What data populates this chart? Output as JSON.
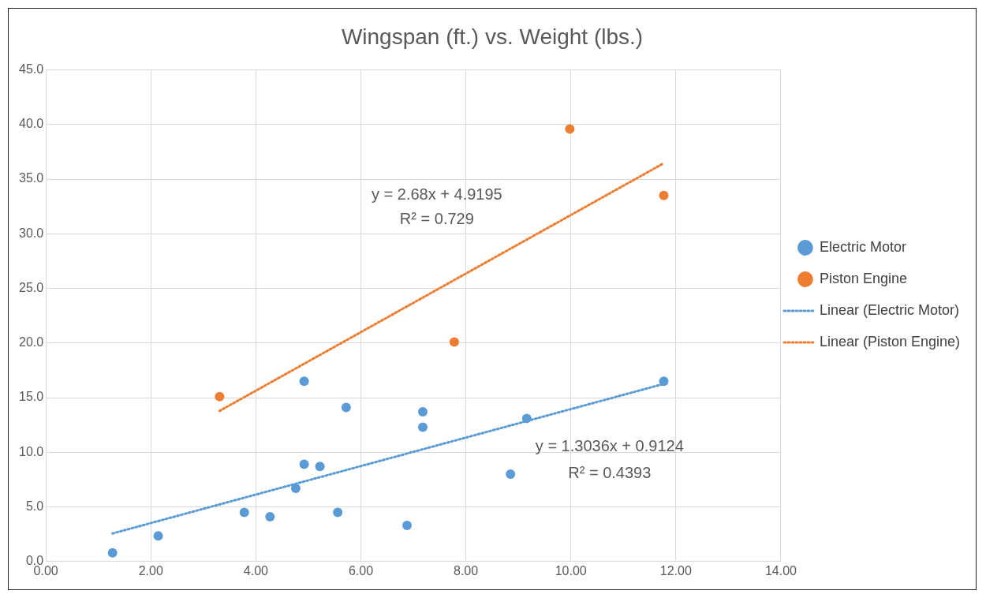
{
  "chart_data": {
    "type": "scatter",
    "title": "Wingspan (ft.) vs. Weight (lbs.)",
    "series": [
      {
        "name": "Electric Motor",
        "color": "#5b9bd5",
        "x": [
          1.27,
          2.14,
          3.78,
          4.27,
          4.76,
          4.92,
          4.92,
          5.22,
          5.56,
          5.72,
          6.88,
          7.18,
          7.18,
          8.85,
          9.16,
          11.77
        ],
        "values": [
          0.8,
          2.35,
          4.5,
          4.1,
          6.7,
          8.9,
          16.5,
          8.7,
          4.5,
          14.1,
          3.3,
          13.7,
          12.3,
          8.0,
          13.1,
          16.5
        ]
      },
      {
        "name": "Piston Engine",
        "color": "#ed7d31",
        "x": [
          3.31,
          7.78,
          9.98,
          11.77
        ],
        "values": [
          15.1,
          20.1,
          39.6,
          33.5
        ]
      },
      {
        "name": "Linear (Electric Motor)",
        "type": "line",
        "line_style": "dotted",
        "marker": "none",
        "color": "#5b9bd5",
        "x": [
          1.27,
          11.77
        ],
        "values": [
          2.57,
          16.26
        ]
      },
      {
        "name": "Linear (Piston Engine)",
        "type": "line",
        "line_style": "dotted",
        "marker": "none",
        "color": "#ed7d31",
        "x": [
          3.31,
          11.77
        ],
        "values": [
          13.79,
          36.46
        ]
      }
    ],
    "annotations": [
      "y = 2.68x + 4.9195",
      "R² = 0.729",
      "y = 1.3036x + 0.9124",
      "R² = 0.4393"
    ],
    "xlim": [
      0,
      14
    ],
    "xticks": [
      {
        "value": 0,
        "label": "0.00"
      },
      {
        "value": 2,
        "label": "2.00"
      },
      {
        "value": 4,
        "label": "4.00"
      },
      {
        "value": 6,
        "label": "6.00"
      },
      {
        "value": 8,
        "label": "8.00"
      },
      {
        "value": 10,
        "label": "10.00"
      },
      {
        "value": 12,
        "label": "12.00"
      },
      {
        "value": 14,
        "label": "14.00"
      }
    ],
    "ylim": [
      0,
      45
    ],
    "yticks": [
      {
        "value": 0,
        "label": "0.0"
      },
      {
        "value": 5,
        "label": "5.0"
      },
      {
        "value": 10,
        "label": "10.0"
      },
      {
        "value": 15,
        "label": "15.0"
      },
      {
        "value": 20,
        "label": "20.0"
      },
      {
        "value": 25,
        "label": "25.0"
      },
      {
        "value": 30,
        "label": "30.0"
      },
      {
        "value": 35,
        "label": "35.0"
      },
      {
        "value": 40,
        "label": "40.0"
      },
      {
        "value": 45,
        "label": "45.0"
      }
    ],
    "grid": true,
    "legend": "right",
    "marker": "circle"
  }
}
